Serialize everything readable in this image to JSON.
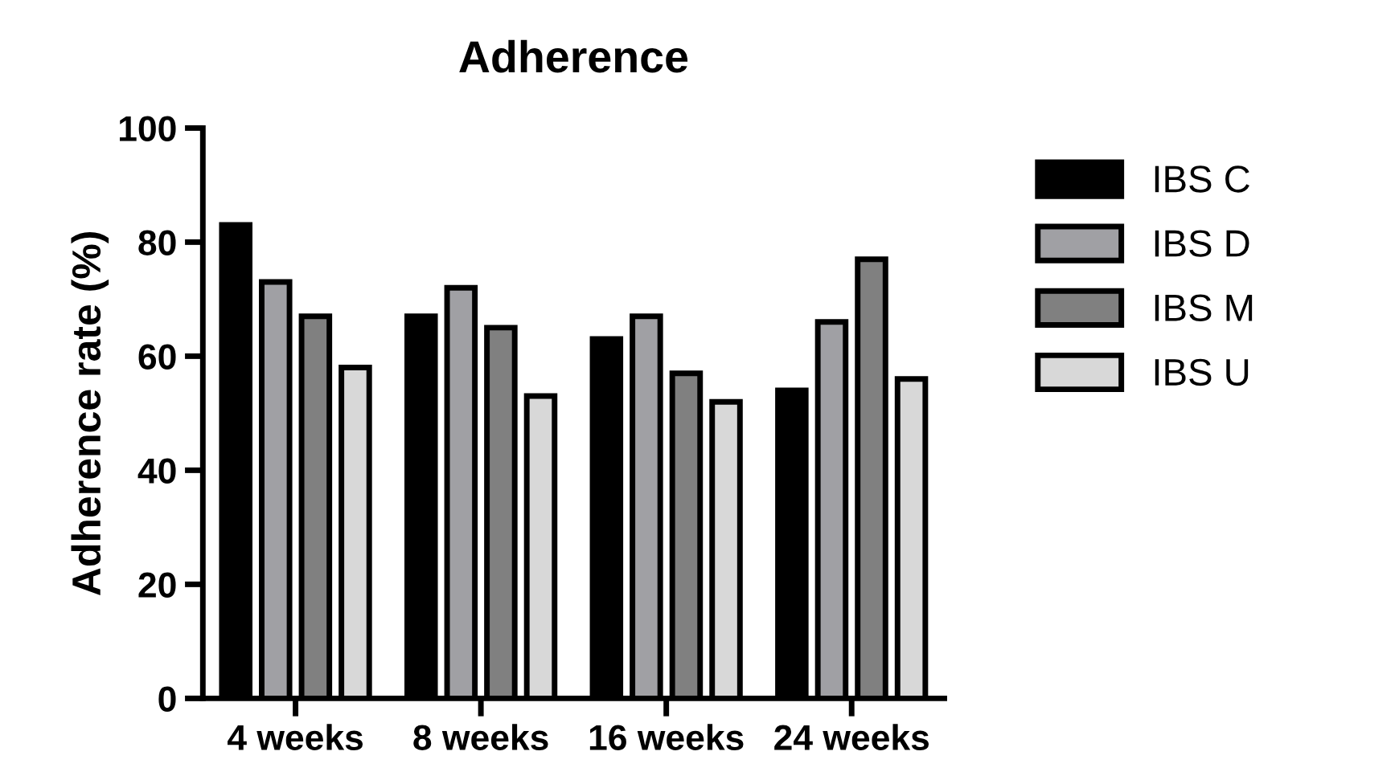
{
  "chart_data": {
    "type": "bar",
    "title": "Adherence",
    "ylabel": "Adherence rate (%)",
    "categories": [
      "4 weeks",
      "8 weeks",
      "16 weeks",
      "24 weeks"
    ],
    "series": [
      {
        "name": "IBS C",
        "color": "#000000",
        "values": [
          83,
          67,
          63,
          54
        ]
      },
      {
        "name": "IBS D",
        "color": "#a0a0a4",
        "values": [
          73,
          72,
          67,
          66
        ]
      },
      {
        "name": "IBS M",
        "color": "#808080",
        "values": [
          67,
          65,
          57,
          77
        ]
      },
      {
        "name": "IBS U",
        "color": "#d8d8d8",
        "values": [
          58,
          53,
          52,
          56
        ]
      }
    ],
    "ylim": [
      0,
      100
    ],
    "yticks": [
      0,
      20,
      40,
      60,
      80,
      100
    ],
    "grid": false,
    "legend": "right"
  }
}
